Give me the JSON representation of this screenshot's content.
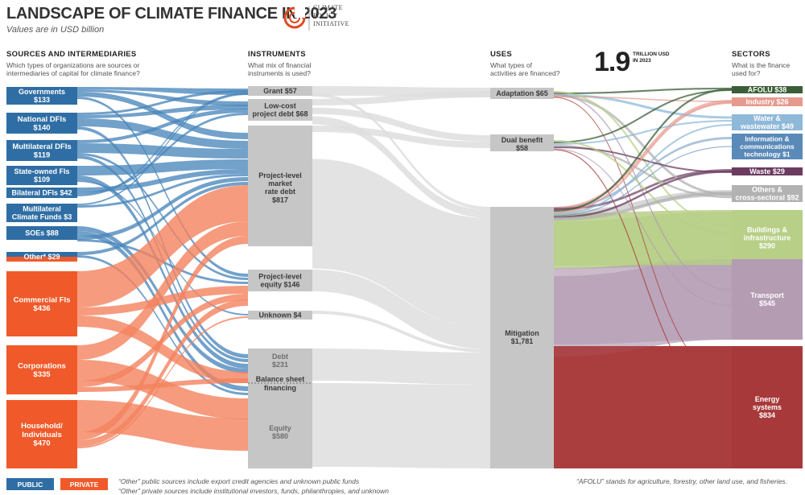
{
  "header": {
    "title": "LANDSCAPE OF CLIMATE FINANCE IN 2023",
    "subtitle": "Values are in USD billion",
    "logo_lines": [
      "CLIMATE",
      "POLICY",
      "INITIATIVE"
    ]
  },
  "columns": {
    "sources": {
      "title": "SOURCES AND INTERMEDIARIES",
      "question": [
        "Which types of organizations are sources or",
        "intermediaries of capital for climate finance?"
      ]
    },
    "instruments": {
      "title": "INSTRUMENTS",
      "question": [
        "What mix of financial",
        "instruments is used?"
      ]
    },
    "uses": {
      "title": "USES",
      "question": [
        "What types of",
        "activities are financed?"
      ]
    },
    "sectors": {
      "title": "SECTORS",
      "question": [
        "What is the finance",
        "used for?"
      ]
    }
  },
  "total": {
    "value": "1.9",
    "unit_lines": [
      "TRILLION USD",
      "IN 2023"
    ]
  },
  "colors": {
    "public": "#2f6ea4",
    "public_flow": "#4a86bb",
    "private": "#f05a2a",
    "private_flow": "#f4825e",
    "instrument_node": "#c7c6c6",
    "flow_grey": "#dedede"
  },
  "chart_data": {
    "type": "sankey",
    "nodes": {
      "sources": [
        {
          "id": "gov",
          "lines": [
            "Governments",
            "$133"
          ],
          "value": 133,
          "group": "public"
        },
        {
          "id": "ndfi",
          "lines": [
            "National DFIs",
            "$140"
          ],
          "value": 140,
          "group": "public"
        },
        {
          "id": "mdfi",
          "lines": [
            "Multilateral DFIs",
            "$119"
          ],
          "value": 119,
          "group": "public"
        },
        {
          "id": "sofi",
          "lines": [
            "State-owned FIs",
            "$109"
          ],
          "value": 109,
          "group": "public"
        },
        {
          "id": "bdfi",
          "lines": [
            "Bilateral DFIs $42"
          ],
          "value": 42,
          "group": "public"
        },
        {
          "id": "mcf",
          "lines": [
            "Multilateral",
            "Climate Funds $3"
          ],
          "value": 3,
          "group": "public"
        },
        {
          "id": "soe",
          "lines": [
            "SOEs $88"
          ],
          "value": 88,
          "group": "public"
        },
        {
          "id": "oth",
          "lines": [
            "Other* $29"
          ],
          "value": 29,
          "group": "mixed"
        },
        {
          "id": "cfi",
          "lines": [
            "Commercial FIs",
            "$436"
          ],
          "value": 436,
          "group": "private"
        },
        {
          "id": "corp",
          "lines": [
            "Corporations",
            "$335"
          ],
          "value": 335,
          "group": "private"
        },
        {
          "id": "hh",
          "lines": [
            "Household/",
            "Individuals",
            "$470"
          ],
          "value": 470,
          "group": "private"
        }
      ],
      "instruments": [
        {
          "id": "grant",
          "lines": [
            "Grant $57"
          ],
          "value": 57
        },
        {
          "id": "lcd",
          "lines": [
            "Low-cost",
            "project debt $68"
          ],
          "value": 68
        },
        {
          "id": "pld",
          "lines": [
            "Project-level",
            "market",
            "rate debt",
            "$817"
          ],
          "value": 817
        },
        {
          "id": "ple",
          "lines": [
            "Project-level",
            "equity $146"
          ],
          "value": 146
        },
        {
          "id": "unk",
          "lines": [
            "Unknown $4"
          ],
          "value": 4
        },
        {
          "id": "bsd",
          "lines": [
            "Debt",
            "$231"
          ],
          "value": 231
        },
        {
          "id": "bse",
          "lines": [
            "Equity",
            "$580"
          ],
          "value": 580
        }
      ],
      "balance_sheet_label": [
        "Balance sheet",
        "financing"
      ],
      "uses": [
        {
          "id": "adapt",
          "lines": [
            "Adaptation $65"
          ],
          "value": 65
        },
        {
          "id": "dual",
          "lines": [
            "Dual benefit",
            "$58"
          ],
          "value": 58
        },
        {
          "id": "mitig",
          "lines": [
            "Mitigation",
            "$1,781"
          ],
          "value": 1781
        }
      ],
      "sectors": [
        {
          "id": "afolu",
          "lines": [
            "AFOLU $38"
          ],
          "value": 38,
          "color": "#3b5e37"
        },
        {
          "id": "ind",
          "lines": [
            "Industry $26"
          ],
          "value": 26,
          "color": "#e59a8e"
        },
        {
          "id": "water",
          "lines": [
            "Water &",
            "wastewater $49"
          ],
          "value": 49,
          "color": "#8fb9d8"
        },
        {
          "id": "ict",
          "lines": [
            "Information &",
            "communications",
            "technology $1"
          ],
          "value": 1,
          "color": "#5a8ab8"
        },
        {
          "id": "waste",
          "lines": [
            "Waste $29"
          ],
          "value": 29,
          "color": "#6b3b60"
        },
        {
          "id": "others",
          "lines": [
            "Others &",
            "cross-sectoral $92"
          ],
          "value": 92,
          "color": "#b2b2b2"
        },
        {
          "id": "build",
          "lines": [
            "Buildings &",
            "infrastructure",
            "$290"
          ],
          "value": 290,
          "color": "#b7cf87"
        },
        {
          "id": "trans",
          "lines": [
            "Transport",
            "$545"
          ],
          "value": 545,
          "color": "#b49cb3"
        },
        {
          "id": "energy",
          "lines": [
            "Energy",
            "systems",
            "$834"
          ],
          "value": 834,
          "color": "#a8393a"
        }
      ]
    }
  },
  "legend": {
    "public_label": "PUBLIC",
    "private_label": "PRIVATE"
  },
  "notes": {
    "other_public": "“Other” public sources include export credit agencies and unknown public funds",
    "other_private": "“Other” private sources include institutional investors, funds, philanthropies, and unknown",
    "afolu": "“AFOLU” stands for agriculture, forestry, other land use, and fisheries."
  }
}
